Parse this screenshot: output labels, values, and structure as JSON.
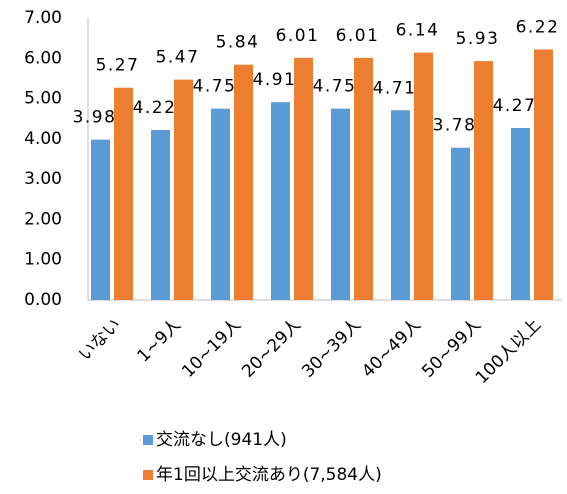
{
  "chart_data": {
    "type": "bar",
    "categories": [
      "いない",
      "1~9人",
      "10~19人",
      "20~29人",
      "30~39人",
      "40~49人",
      "50~99人",
      "100人以上"
    ],
    "series": [
      {
        "name": "交流なし(941人)",
        "color": "#5b9bd5",
        "values": [
          3.98,
          4.22,
          4.75,
          4.91,
          4.75,
          4.71,
          3.78,
          4.27
        ]
      },
      {
        "name": "年1回以上交流あり(7,584人)",
        "color": "#ed7d31",
        "values": [
          5.27,
          5.47,
          5.84,
          6.01,
          6.01,
          6.14,
          5.93,
          6.22
        ]
      }
    ],
    "ylim": [
      0,
      7
    ],
    "yticks": [
      {
        "value": 0,
        "label": "0.00"
      },
      {
        "value": 1,
        "label": "1.00"
      },
      {
        "value": 2,
        "label": "2.00"
      },
      {
        "value": 3,
        "label": "3.00"
      },
      {
        "value": 4,
        "label": "4.00"
      },
      {
        "value": 5,
        "label": "5.00"
      },
      {
        "value": 6,
        "label": "6.00"
      },
      {
        "value": 7,
        "label": "7.00"
      }
    ],
    "grid": false,
    "legend": "bottom"
  }
}
